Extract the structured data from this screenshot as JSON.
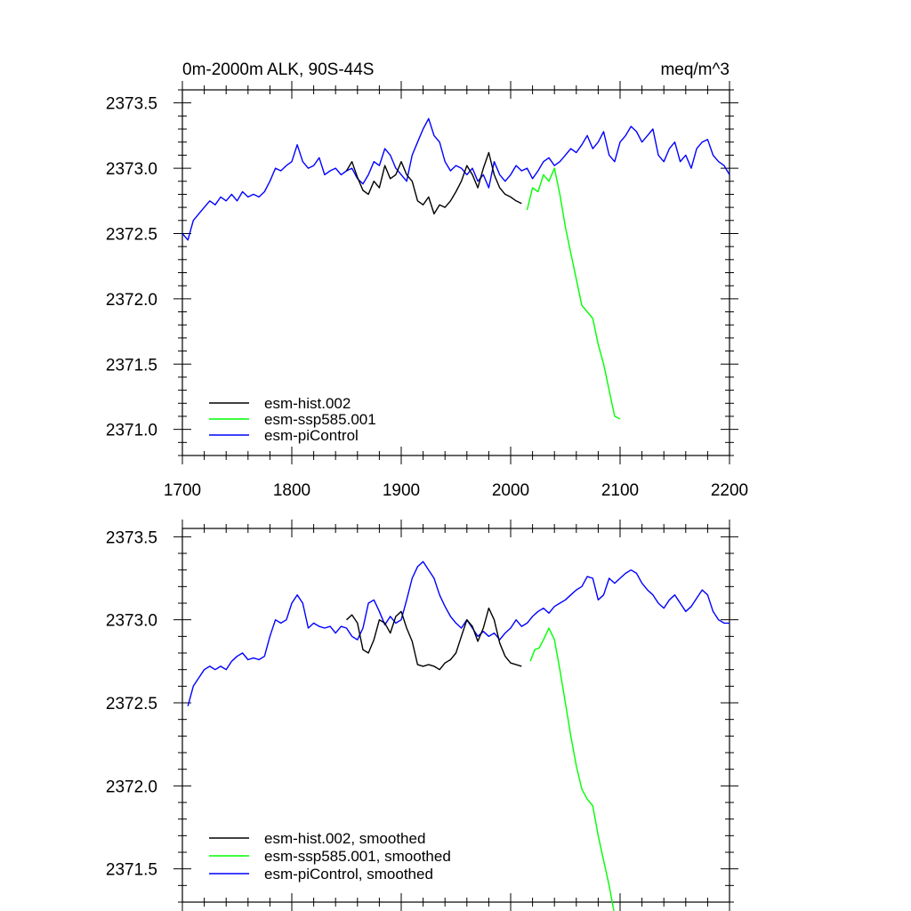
{
  "figure": {
    "title_left": "0m-2000m ALK, 90S-44S",
    "title_right": "meq/m^3"
  },
  "chart_data": [
    {
      "type": "line",
      "xlim": [
        1700,
        2200
      ],
      "ylim": [
        2370.8,
        2373.6
      ],
      "xticks": [
        1700,
        1800,
        1900,
        2000,
        2100,
        2200
      ],
      "xtick_labels": [
        "1700",
        "1800",
        "1900",
        "2000",
        "2100",
        "2200"
      ],
      "yticks": [
        2371.0,
        2371.5,
        2372.0,
        2372.5,
        2373.0,
        2373.5
      ],
      "ytick_labels": [
        "2371.0",
        "2371.5",
        "2372.0",
        "2372.5",
        "2373.0",
        "2373.5"
      ],
      "legend_position": "bottom-left",
      "series": [
        {
          "name": "esm-hist.002",
          "color": "#000000",
          "x": [
            1850,
            1855,
            1860,
            1865,
            1870,
            1875,
            1880,
            1885,
            1890,
            1895,
            1900,
            1905,
            1910,
            1915,
            1920,
            1925,
            1930,
            1935,
            1940,
            1945,
            1950,
            1955,
            1960,
            1965,
            1970,
            1975,
            1980,
            1985,
            1990,
            1995,
            2000,
            2005,
            2010
          ],
          "y": [
            2372.98,
            2373.05,
            2372.93,
            2372.83,
            2372.8,
            2372.9,
            2372.85,
            2373.02,
            2372.92,
            2372.95,
            2373.05,
            2372.95,
            2372.9,
            2372.75,
            2372.72,
            2372.78,
            2372.65,
            2372.72,
            2372.7,
            2372.75,
            2372.82,
            2372.9,
            2373.02,
            2372.95,
            2372.85,
            2373.0,
            2373.12,
            2372.95,
            2372.85,
            2372.8,
            2372.78,
            2372.75,
            2372.73
          ]
        },
        {
          "name": "esm-ssp585.001",
          "color": "#00ff00",
          "x": [
            2015,
            2020,
            2025,
            2030,
            2035,
            2040,
            2045,
            2050,
            2055,
            2060,
            2065,
            2070,
            2075,
            2080,
            2085,
            2090,
            2095,
            2100
          ],
          "y": [
            2372.68,
            2372.85,
            2372.82,
            2372.95,
            2372.9,
            2373.0,
            2372.8,
            2372.55,
            2372.35,
            2372.15,
            2371.95,
            2371.9,
            2371.85,
            2371.65,
            2371.5,
            2371.3,
            2371.1,
            2371.08
          ]
        },
        {
          "name": "esm-piControl",
          "color": "#0000ff",
          "x": [
            1700,
            1705,
            1710,
            1715,
            1720,
            1725,
            1730,
            1735,
            1740,
            1745,
            1750,
            1755,
            1760,
            1765,
            1770,
            1775,
            1780,
            1785,
            1790,
            1795,
            1800,
            1805,
            1810,
            1815,
            1820,
            1825,
            1830,
            1835,
            1840,
            1845,
            1850,
            1855,
            1860,
            1865,
            1870,
            1875,
            1880,
            1885,
            1890,
            1895,
            1900,
            1905,
            1910,
            1915,
            1920,
            1925,
            1930,
            1935,
            1940,
            1945,
            1950,
            1955,
            1960,
            1965,
            1970,
            1975,
            1980,
            1985,
            1990,
            1995,
            2000,
            2005,
            2010,
            2015,
            2020,
            2025,
            2030,
            2035,
            2040,
            2045,
            2050,
            2055,
            2060,
            2065,
            2070,
            2075,
            2080,
            2085,
            2090,
            2095,
            2100,
            2105,
            2110,
            2115,
            2120,
            2125,
            2130,
            2135,
            2140,
            2145,
            2150,
            2155,
            2160,
            2165,
            2170,
            2175,
            2180,
            2185,
            2190,
            2195,
            2200
          ],
          "y": [
            2372.5,
            2372.45,
            2372.6,
            2372.65,
            2372.7,
            2372.75,
            2372.72,
            2372.78,
            2372.75,
            2372.8,
            2372.75,
            2372.82,
            2372.78,
            2372.8,
            2372.78,
            2372.82,
            2372.9,
            2373.0,
            2372.98,
            2373.02,
            2373.05,
            2373.18,
            2373.05,
            2373.0,
            2373.02,
            2373.08,
            2372.95,
            2372.98,
            2373.0,
            2372.95,
            2372.98,
            2373.0,
            2372.92,
            2372.88,
            2372.95,
            2373.05,
            2373.02,
            2373.15,
            2373.1,
            2373.0,
            2372.95,
            2372.9,
            2373.1,
            2373.2,
            2373.3,
            2373.38,
            2373.25,
            2373.2,
            2373.05,
            2372.98,
            2373.02,
            2373.0,
            2372.95,
            2373.0,
            2372.9,
            2372.95,
            2372.85,
            2373.05,
            2372.95,
            2372.9,
            2372.95,
            2373.02,
            2372.98,
            2373.0,
            2372.92,
            2372.98,
            2373.05,
            2373.08,
            2373.02,
            2373.05,
            2373.1,
            2373.15,
            2373.12,
            2373.18,
            2373.25,
            2373.15,
            2373.2,
            2373.28,
            2373.1,
            2373.05,
            2373.2,
            2373.25,
            2373.32,
            2373.28,
            2373.2,
            2373.25,
            2373.3,
            2373.1,
            2373.05,
            2373.15,
            2373.2,
            2373.05,
            2373.1,
            2373.0,
            2373.15,
            2373.2,
            2373.22,
            2373.1,
            2373.05,
            2373.02,
            2372.95
          ]
        }
      ]
    },
    {
      "type": "line",
      "xlim": [
        1700,
        2200
      ],
      "ylim": [
        2371.3,
        2373.55
      ],
      "xticks": [
        1700,
        1800,
        1900,
        2000,
        2100,
        2200
      ],
      "yticks": [
        2371.5,
        2372.0,
        2372.5,
        2373.0,
        2373.5
      ],
      "ytick_labels": [
        "2371.5",
        "2372.0",
        "2372.5",
        "2373.0",
        "2373.5"
      ],
      "legend_position": "bottom-left",
      "series": [
        {
          "name": "esm-hist.002, smoothed",
          "color": "#000000",
          "x": [
            1850,
            1855,
            1860,
            1865,
            1870,
            1875,
            1880,
            1885,
            1890,
            1895,
            1900,
            1905,
            1910,
            1915,
            1920,
            1925,
            1930,
            1935,
            1940,
            1945,
            1950,
            1955,
            1960,
            1965,
            1970,
            1975,
            1980,
            1985,
            1990,
            1995,
            2000,
            2005,
            2010
          ],
          "y": [
            2373.0,
            2373.03,
            2372.98,
            2372.82,
            2372.8,
            2372.88,
            2373.0,
            2372.98,
            2372.92,
            2373.02,
            2373.05,
            2372.95,
            2372.87,
            2372.73,
            2372.72,
            2372.73,
            2372.72,
            2372.7,
            2372.74,
            2372.76,
            2372.8,
            2372.9,
            2373.0,
            2372.96,
            2372.87,
            2372.95,
            2373.07,
            2373.0,
            2372.86,
            2372.78,
            2372.74,
            2372.73,
            2372.72
          ]
        },
        {
          "name": "esm-ssp585.001, smoothed",
          "color": "#00ff00",
          "x": [
            2018,
            2022,
            2026,
            2030,
            2035,
            2040,
            2045,
            2050,
            2055,
            2060,
            2065,
            2070,
            2075,
            2080,
            2085,
            2090,
            2095,
            2098
          ],
          "y": [
            2372.75,
            2372.82,
            2372.83,
            2372.88,
            2372.95,
            2372.88,
            2372.7,
            2372.5,
            2372.3,
            2372.12,
            2371.98,
            2371.92,
            2371.88,
            2371.7,
            2371.55,
            2371.4,
            2371.22,
            2371.2
          ]
        },
        {
          "name": "esm-piControl, smoothed",
          "color": "#0000ff",
          "x": [
            1705,
            1710,
            1715,
            1720,
            1725,
            1730,
            1735,
            1740,
            1745,
            1750,
            1755,
            1760,
            1765,
            1770,
            1775,
            1780,
            1785,
            1790,
            1795,
            1800,
            1805,
            1810,
            1815,
            1820,
            1825,
            1830,
            1835,
            1840,
            1845,
            1850,
            1855,
            1860,
            1865,
            1870,
            1875,
            1880,
            1885,
            1890,
            1895,
            1900,
            1905,
            1910,
            1915,
            1920,
            1925,
            1930,
            1935,
            1940,
            1945,
            1950,
            1955,
            1960,
            1965,
            1970,
            1975,
            1980,
            1985,
            1990,
            1995,
            2000,
            2005,
            2010,
            2015,
            2020,
            2025,
            2030,
            2035,
            2040,
            2045,
            2050,
            2055,
            2060,
            2065,
            2070,
            2075,
            2080,
            2085,
            2090,
            2095,
            2100,
            2105,
            2110,
            2115,
            2120,
            2125,
            2130,
            2135,
            2140,
            2145,
            2150,
            2155,
            2160,
            2165,
            2170,
            2175,
            2180,
            2185,
            2190,
            2195,
            2200
          ],
          "y": [
            2372.48,
            2372.6,
            2372.65,
            2372.7,
            2372.72,
            2372.7,
            2372.72,
            2372.7,
            2372.75,
            2372.78,
            2372.8,
            2372.76,
            2372.77,
            2372.76,
            2372.78,
            2372.9,
            2373.0,
            2372.98,
            2373.0,
            2373.1,
            2373.15,
            2373.1,
            2372.95,
            2372.98,
            2372.96,
            2372.95,
            2372.96,
            2372.92,
            2372.96,
            2372.95,
            2372.9,
            2372.88,
            2372.95,
            2373.1,
            2373.12,
            2373.05,
            2372.97,
            2373.02,
            2372.98,
            2373.0,
            2373.12,
            2373.25,
            2373.32,
            2373.35,
            2373.3,
            2373.25,
            2373.15,
            2373.08,
            2373.02,
            2372.98,
            2372.95,
            2373.0,
            2372.95,
            2372.9,
            2372.93,
            2372.9,
            2372.92,
            2372.88,
            2372.92,
            2372.95,
            2373.0,
            2372.96,
            2372.98,
            2373.02,
            2373.05,
            2373.07,
            2373.04,
            2373.08,
            2373.1,
            2373.12,
            2373.15,
            2373.18,
            2373.2,
            2373.26,
            2373.25,
            2373.12,
            2373.15,
            2373.25,
            2373.22,
            2373.25,
            2373.28,
            2373.3,
            2373.28,
            2373.22,
            2373.18,
            2373.15,
            2373.1,
            2373.07,
            2373.12,
            2373.15,
            2373.1,
            2373.05,
            2373.08,
            2373.13,
            2373.18,
            2373.15,
            2373.05,
            2373.0,
            2372.98,
            2372.98
          ]
        }
      ]
    }
  ]
}
